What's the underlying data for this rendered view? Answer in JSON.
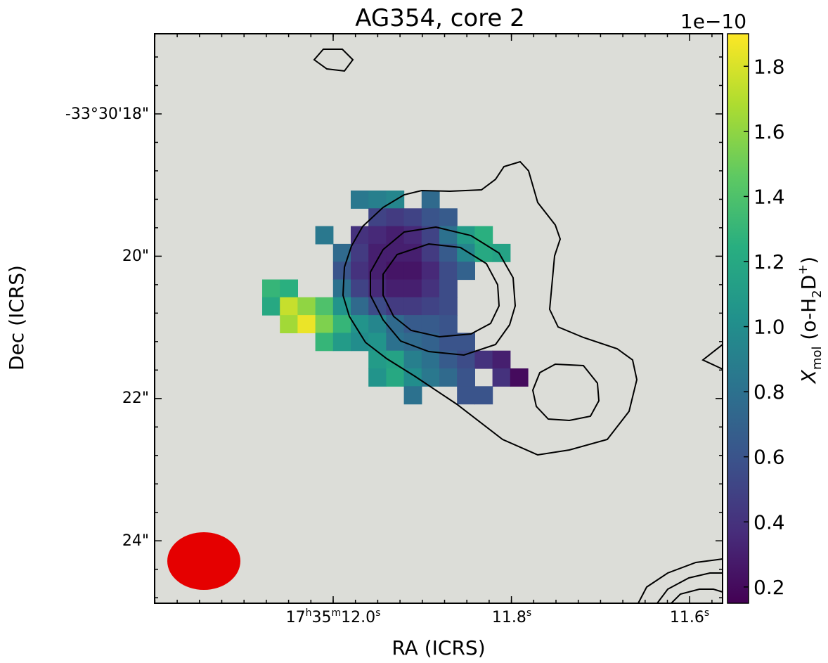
{
  "chart_data": {
    "type": "heatmap",
    "title": "AG354, core 2",
    "xlabel": "RA (ICRS)",
    "ylabel": "Dec (ICRS)",
    "x_ticks": [
      {
        "main": "17",
        "h": "h",
        "mid": "35",
        "m": "m",
        "sec": "12.0",
        "s": "s"
      },
      {
        "main": "",
        "h": "",
        "mid": "",
        "m": "",
        "sec": "11.8",
        "s": "s"
      },
      {
        "main": "",
        "h": "",
        "mid": "",
        "m": "",
        "sec": "11.6",
        "s": "s"
      }
    ],
    "y_ticks": [
      "-33°30'18\"",
      "20\"",
      "22\"",
      "24\""
    ],
    "colorbar": {
      "label_main": "X",
      "label_sub": "mol",
      "label_rest_a": " (o-H",
      "label_rest_sub": "2",
      "label_rest_b": "D",
      "label_rest_sup": "+",
      "label_rest_c": ")",
      "exponent": "1e−10",
      "range": [
        0.15,
        1.9
      ],
      "ticks": [
        "0.2",
        "0.4",
        "0.6",
        "0.8",
        "1.0",
        "1.2",
        "1.4",
        "1.6",
        "1.8"
      ],
      "colormap": "viridis"
    },
    "pixel_map": {
      "units": "1e-10",
      "cells": [
        [
          5,
          0,
          0.85
        ],
        [
          6,
          0,
          0.9
        ],
        [
          7,
          0,
          0.95
        ],
        [
          9,
          0,
          0.75
        ],
        [
          6,
          1,
          0.5
        ],
        [
          7,
          1,
          0.45
        ],
        [
          8,
          1,
          0.5
        ],
        [
          9,
          1,
          0.6
        ],
        [
          10,
          1,
          0.65
        ],
        [
          3,
          2,
          0.85
        ],
        [
          5,
          2,
          0.4
        ],
        [
          6,
          2,
          0.35
        ],
        [
          7,
          2,
          0.3
        ],
        [
          8,
          2,
          0.35
        ],
        [
          9,
          2,
          0.5
        ],
        [
          10,
          2,
          0.8
        ],
        [
          11,
          2,
          1.1
        ],
        [
          12,
          2,
          1.25
        ],
        [
          4,
          3,
          0.75
        ],
        [
          5,
          3,
          0.45
        ],
        [
          6,
          3,
          0.3
        ],
        [
          7,
          3,
          0.3
        ],
        [
          8,
          3,
          0.3
        ],
        [
          9,
          3,
          0.45
        ],
        [
          10,
          3,
          0.65
        ],
        [
          11,
          3,
          0.95
        ],
        [
          12,
          3,
          1.2
        ],
        [
          13,
          3,
          1.15
        ],
        [
          4,
          4,
          0.6
        ],
        [
          5,
          4,
          0.4
        ],
        [
          6,
          4,
          0.3
        ],
        [
          7,
          4,
          0.25
        ],
        [
          8,
          4,
          0.25
        ],
        [
          9,
          4,
          0.35
        ],
        [
          10,
          4,
          0.55
        ],
        [
          11,
          4,
          0.7
        ],
        [
          0,
          5,
          1.3
        ],
        [
          1,
          5,
          1.25
        ],
        [
          4,
          5,
          0.8
        ],
        [
          5,
          5,
          0.5
        ],
        [
          6,
          5,
          0.35
        ],
        [
          7,
          5,
          0.3
        ],
        [
          8,
          5,
          0.3
        ],
        [
          9,
          5,
          0.4
        ],
        [
          10,
          5,
          0.55
        ],
        [
          0,
          6,
          1.2
        ],
        [
          1,
          6,
          1.75
        ],
        [
          2,
          6,
          1.6
        ],
        [
          3,
          6,
          1.4
        ],
        [
          4,
          6,
          1.05
        ],
        [
          5,
          6,
          0.75
        ],
        [
          6,
          6,
          0.55
        ],
        [
          7,
          6,
          0.45
        ],
        [
          8,
          6,
          0.45
        ],
        [
          9,
          6,
          0.5
        ],
        [
          10,
          6,
          0.55
        ],
        [
          1,
          7,
          1.65
        ],
        [
          2,
          7,
          1.85
        ],
        [
          3,
          7,
          1.55
        ],
        [
          4,
          7,
          1.3
        ],
        [
          5,
          7,
          1.05
        ],
        [
          6,
          7,
          0.95
        ],
        [
          7,
          7,
          0.75
        ],
        [
          8,
          7,
          0.65
        ],
        [
          9,
          7,
          0.65
        ],
        [
          10,
          7,
          0.6
        ],
        [
          3,
          8,
          1.3
        ],
        [
          4,
          8,
          1.1
        ],
        [
          5,
          8,
          1.0
        ],
        [
          6,
          8,
          1.05
        ],
        [
          7,
          8,
          0.8
        ],
        [
          8,
          8,
          0.75
        ],
        [
          9,
          8,
          0.7
        ],
        [
          10,
          8,
          0.6
        ],
        [
          11,
          8,
          0.6
        ],
        [
          6,
          9,
          1.1
        ],
        [
          7,
          9,
          1.15
        ],
        [
          8,
          9,
          0.9
        ],
        [
          9,
          9,
          0.8
        ],
        [
          10,
          9,
          0.65
        ],
        [
          11,
          9,
          0.55
        ],
        [
          12,
          9,
          0.4
        ],
        [
          13,
          9,
          0.3
        ],
        [
          6,
          10,
          1.05
        ],
        [
          7,
          10,
          1.2
        ],
        [
          8,
          10,
          1.0
        ],
        [
          9,
          10,
          0.85
        ],
        [
          10,
          10,
          0.75
        ],
        [
          11,
          10,
          0.6
        ],
        [
          13,
          10,
          0.4
        ],
        [
          14,
          10,
          0.2
        ],
        [
          8,
          11,
          0.8
        ],
        [
          11,
          11,
          0.6
        ],
        [
          12,
          11,
          0.6
        ]
      ]
    },
    "beam": {
      "shape": "ellipse",
      "color": "#e50000"
    },
    "contours": "black outline contours",
    "background_color": "#dcddd8",
    "grid": false
  }
}
